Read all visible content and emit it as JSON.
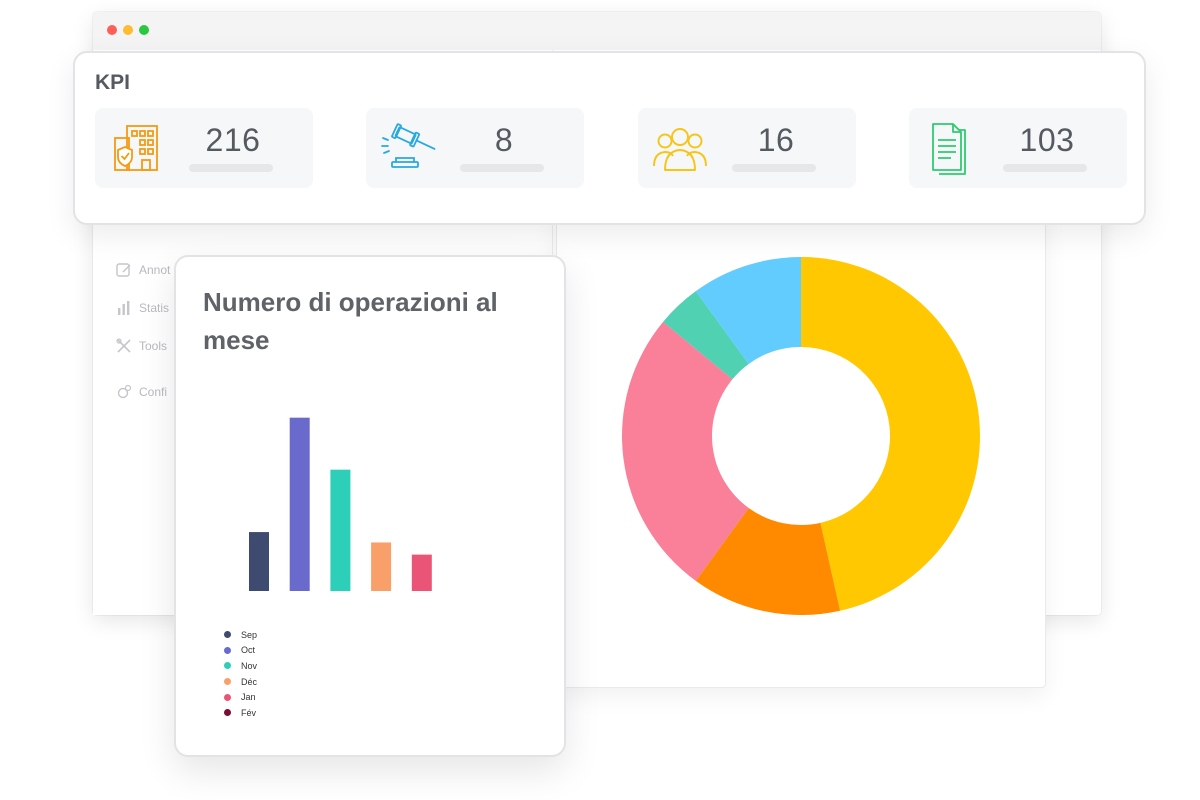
{
  "kpi": {
    "title": "KPI",
    "items": [
      {
        "value": "216",
        "icon": "building-shield-icon",
        "color": "#f39c12"
      },
      {
        "value": "8",
        "icon": "gavel-icon",
        "color": "#29a9e0"
      },
      {
        "value": "16",
        "icon": "users-group-icon",
        "color": "#f5c518"
      },
      {
        "value": "103",
        "icon": "document-icon",
        "color": "#2ecc71"
      }
    ]
  },
  "sidebar": {
    "items": [
      {
        "label": "Annot",
        "icon": "annotation-icon"
      },
      {
        "label": "Statis",
        "icon": "bar-chart-icon"
      },
      {
        "label": "Tools",
        "icon": "tools-icon"
      },
      {
        "label": "Confi",
        "icon": "settings-icon"
      }
    ]
  },
  "bar_chart": {
    "title": "Numero di operazioni al mese",
    "chart_data": {
      "type": "bar",
      "categories": [
        "Sep",
        "Oct",
        "Nov",
        "Déc",
        "Jan",
        "Fév"
      ],
      "values": [
        3.4,
        10.0,
        7.0,
        2.8,
        2.1,
        0
      ],
      "colors": [
        "#3f4a70",
        "#6a6acd",
        "#2ecfb9",
        "#f9a06a",
        "#ea5577",
        "#7b0c33"
      ],
      "ylim": [
        0,
        10.5
      ],
      "legend": "bottom-left"
    }
  },
  "donut_chart": {
    "chart_data": {
      "type": "pie",
      "values": [
        46.5,
        13.5,
        26,
        4,
        10
      ],
      "colors": [
        "#ffc800",
        "#ff8a00",
        "#f98098",
        "#4fd1b2",
        "#62ccfe"
      ]
    }
  }
}
